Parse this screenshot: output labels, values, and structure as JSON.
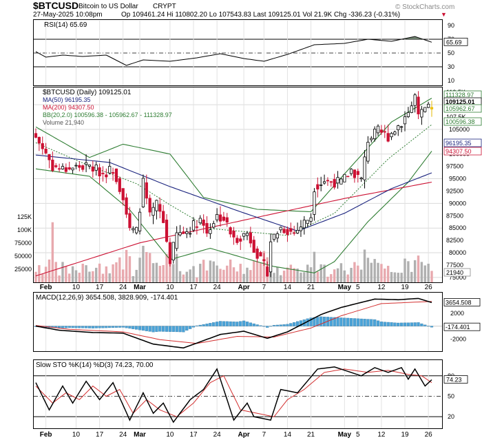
{
  "header": {
    "symbol": "$BTCUSD",
    "name": "Bitcoin to US Dollar",
    "exchange": "CRYPT",
    "watermark": "© StockCharts.com",
    "date": "27-May-2025 10:08pm",
    "ohlc": "Op 109461.24  Hi 110802.20  Lo 107543.83  Last 109125.01  Vol 21.9K  Chg -336.23 (-0.31%)",
    "down_marker": "▼"
  },
  "colors": {
    "up": "#000000",
    "down": "#cc1133",
    "ma50": "#1a237e",
    "ma200": "#cc1133",
    "bb": "#2e7d32",
    "bbmid": "#2e7d32",
    "vol": "#e8a9ae",
    "vol_up": "#b0b0b0",
    "macd": "#000000",
    "signal": "#d32f2f",
    "hist": "#4aa3d8",
    "stok": "#000000",
    "stod": "#d32f2f",
    "rsi": "#000000",
    "rsi_fill": "#556b55"
  },
  "rsi": {
    "label": "RSI(14) 65.69",
    "ticks": [
      "90",
      "70",
      "50",
      "30",
      "10"
    ],
    "value_tag": "65.69"
  },
  "price": {
    "labels": [
      "$BTCUSD (Daily) 109125.01",
      "MA(50) 96195.35",
      "MA(200) 94307.50",
      "BB(20,2.0) 100596.38 - 105962.67 - 111328.97",
      "Volume 21,940"
    ],
    "ticks": [
      "112.5K",
      "107.5K",
      "102.5K",
      "97500",
      "92500",
      "87500",
      "82500",
      "77500",
      "110000",
      "105000",
      "100000",
      "95000",
      "90000",
      "85000",
      "80000",
      "75000"
    ],
    "tags": [
      "111328.97",
      "109125.01",
      "105962.67",
      "100596.38",
      "96195.35",
      "94307.50"
    ],
    "vol_ticks": [
      "125K",
      "100K",
      "75000",
      "50000",
      "25000"
    ],
    "vol_tag": "21940"
  },
  "macd": {
    "label": "MACD(12,26,9) 3654.508, 3828.909, -174.401",
    "ticks": [
      "2000",
      "0",
      "-2000"
    ],
    "tags": [
      "3654.508",
      "-174.401"
    ]
  },
  "sto": {
    "label": "Slow STO %K(14) %D(3) 74.23, 70.00",
    "ticks": [
      "80",
      "50",
      "20"
    ],
    "tag": "74.23"
  },
  "x_axis": [
    "Feb",
    "10",
    "17",
    "24",
    "Mar",
    "10",
    "17",
    "24",
    "Apr",
    "7",
    "14",
    "21",
    "May",
    "5",
    "12",
    "19",
    "26"
  ],
  "chart_data": {
    "type": "candlestick",
    "title": "$BTCUSD (Daily) 109125.01",
    "anchors": [
      [
        "2025-01-29",
        103400
      ],
      [
        "2025-02-01",
        100200
      ],
      [
        "2025-02-03",
        97500
      ],
      [
        "2025-02-06",
        96900
      ],
      [
        "2025-02-10",
        97400
      ],
      [
        "2025-02-14",
        97500
      ],
      [
        "2025-02-18",
        96100
      ],
      [
        "2025-02-21",
        97000
      ],
      [
        "2025-02-24",
        91500
      ],
      [
        "2025-02-26",
        84500
      ],
      [
        "2025-02-28",
        84300
      ],
      [
        "2025-03-02",
        94200
      ],
      [
        "2025-03-04",
        87200
      ],
      [
        "2025-03-06",
        89900
      ],
      [
        "2025-03-08",
        86200
      ],
      [
        "2025-03-10",
        78500
      ],
      [
        "2025-03-12",
        83700
      ],
      [
        "2025-03-15",
        84300
      ],
      [
        "2025-03-19",
        86900
      ],
      [
        "2025-03-21",
        84200
      ],
      [
        "2025-03-24",
        87500
      ],
      [
        "2025-03-26",
        86900
      ],
      [
        "2025-03-29",
        82600
      ],
      [
        "2025-04-02",
        84000
      ],
      [
        "2025-04-06",
        78300
      ],
      [
        "2025-04-08",
        76300
      ],
      [
        "2025-04-09",
        82500
      ],
      [
        "2025-04-12",
        85100
      ],
      [
        "2025-04-16",
        84000
      ],
      [
        "2025-04-21",
        87500
      ],
      [
        "2025-04-22",
        93400
      ],
      [
        "2025-04-25",
        94600
      ],
      [
        "2025-04-30",
        94200
      ],
      [
        "2025-05-03",
        96800
      ],
      [
        "2025-05-06",
        94700
      ],
      [
        "2025-05-08",
        103000
      ],
      [
        "2025-05-11",
        104600
      ],
      [
        "2025-05-14",
        103600
      ],
      [
        "2025-05-18",
        106500
      ],
      [
        "2025-05-21",
        109700
      ],
      [
        "2025-05-22",
        111700
      ],
      [
        "2025-05-23",
        107300
      ],
      [
        "2025-05-25",
        109000
      ],
      [
        "2025-05-27",
        109125
      ]
    ],
    "last_bar": {
      "open": 109461.24,
      "high": 110802.2,
      "low": 107543.83,
      "close": 109125.01,
      "volume": 21900
    },
    "ma50_points": [
      [
        "2025-01-29",
        99800
      ],
      [
        "2025-02-20",
        98300
      ],
      [
        "2025-03-10",
        93400
      ],
      [
        "2025-03-31",
        88300
      ],
      [
        "2025-04-17",
        84400
      ],
      [
        "2025-05-01",
        88000
      ],
      [
        "2025-05-15",
        93000
      ],
      [
        "2025-05-27",
        96195
      ]
    ],
    "ma200_points": [
      [
        "2025-01-29",
        75300
      ],
      [
        "2025-03-01",
        82000
      ],
      [
        "2025-04-01",
        86600
      ],
      [
        "2025-05-01",
        91000
      ],
      [
        "2025-05-27",
        94307
      ]
    ],
    "bb_upper_points": [
      [
        "2025-01-29",
        105500
      ],
      [
        "2025-02-14",
        99300
      ],
      [
        "2025-02-24",
        102000
      ],
      [
        "2025-03-10",
        100000
      ],
      [
        "2025-03-20",
        91200
      ],
      [
        "2025-04-05",
        88800
      ],
      [
        "2025-04-21",
        88300
      ],
      [
        "2025-05-03",
        97500
      ],
      [
        "2025-05-15",
        106500
      ],
      [
        "2025-05-27",
        111329
      ]
    ],
    "bb_mid_points": [
      [
        "2025-01-29",
        102300
      ],
      [
        "2025-02-14",
        97600
      ],
      [
        "2025-02-28",
        94000
      ],
      [
        "2025-03-10",
        89700
      ],
      [
        "2025-03-22",
        84900
      ],
      [
        "2025-04-14",
        83500
      ],
      [
        "2025-04-28",
        88000
      ],
      [
        "2025-05-14",
        99000
      ],
      [
        "2025-05-27",
        105963
      ]
    ],
    "bb_lower_points": [
      [
        "2025-01-29",
        97000
      ],
      [
        "2025-02-14",
        95500
      ],
      [
        "2025-02-26",
        88700
      ],
      [
        "2025-03-10",
        78600
      ],
      [
        "2025-03-22",
        80900
      ],
      [
        "2025-04-10",
        77200
      ],
      [
        "2025-04-22",
        75900
      ],
      [
        "2025-04-28",
        78200
      ],
      [
        "2025-05-08",
        86300
      ],
      [
        "2025-05-20",
        94300
      ],
      [
        "2025-05-27",
        100596
      ]
    ],
    "macd_points": [
      [
        "2025-01-29",
        0
      ],
      [
        "2025-02-05",
        -650
      ],
      [
        "2025-02-15",
        -1000
      ],
      [
        "2025-02-24",
        -1100
      ],
      [
        "2025-03-05",
        -2800
      ],
      [
        "2025-03-14",
        -3400
      ],
      [
        "2025-03-25",
        -1300
      ],
      [
        "2025-04-01",
        -800
      ],
      [
        "2025-04-08",
        -1900
      ],
      [
        "2025-04-14",
        -900
      ],
      [
        "2025-04-24",
        1800
      ],
      [
        "2025-04-30",
        2900
      ],
      [
        "2025-05-10",
        4200
      ],
      [
        "2025-05-17",
        4100
      ],
      [
        "2025-05-23",
        4300
      ],
      [
        "2025-05-27",
        3654.508
      ]
    ],
    "signal_points": [
      [
        "2025-01-29",
        100
      ],
      [
        "2025-02-08",
        -500
      ],
      [
        "2025-02-24",
        -900
      ],
      [
        "2025-03-07",
        -2100
      ],
      [
        "2025-03-18",
        -2700
      ],
      [
        "2025-03-30",
        -1600
      ],
      [
        "2025-04-10",
        -1700
      ],
      [
        "2025-04-21",
        -300
      ],
      [
        "2025-04-30",
        1600
      ],
      [
        "2025-05-12",
        3500
      ],
      [
        "2025-05-27",
        3828.909
      ]
    ],
    "stok_points": [
      [
        "2025-01-29",
        70
      ],
      [
        "2025-02-02",
        30
      ],
      [
        "2025-02-06",
        65
      ],
      [
        "2025-02-09",
        40
      ],
      [
        "2025-02-13",
        72
      ],
      [
        "2025-02-17",
        45
      ],
      [
        "2025-02-21",
        70
      ],
      [
        "2025-02-26",
        15
      ],
      [
        "2025-03-02",
        55
      ],
      [
        "2025-03-05",
        25
      ],
      [
        "2025-03-08",
        40
      ],
      [
        "2025-03-11",
        12
      ],
      [
        "2025-03-16",
        45
      ],
      [
        "2025-03-20",
        60
      ],
      [
        "2025-03-24",
        90
      ],
      [
        "2025-03-29",
        15
      ],
      [
        "2025-04-02",
        40
      ],
      [
        "2025-04-04",
        20
      ],
      [
        "2025-04-09",
        15
      ],
      [
        "2025-04-12",
        60
      ],
      [
        "2025-04-17",
        55
      ],
      [
        "2025-04-23",
        90
      ],
      [
        "2025-04-28",
        93
      ],
      [
        "2025-05-06",
        80
      ],
      [
        "2025-05-10",
        92
      ],
      [
        "2025-05-14",
        85
      ],
      [
        "2025-05-18",
        92
      ],
      [
        "2025-05-20",
        75
      ],
      [
        "2025-05-22",
        90
      ],
      [
        "2025-05-25",
        65
      ],
      [
        "2025-05-27",
        74.23
      ]
    ],
    "stod_points": [
      [
        "2025-01-29",
        65
      ],
      [
        "2025-02-03",
        40
      ],
      [
        "2025-02-07",
        55
      ],
      [
        "2025-02-11",
        45
      ],
      [
        "2025-02-15",
        65
      ],
      [
        "2025-02-19",
        50
      ],
      [
        "2025-02-23",
        60
      ],
      [
        "2025-02-27",
        25
      ],
      [
        "2025-03-03",
        45
      ],
      [
        "2025-03-07",
        30
      ],
      [
        "2025-03-12",
        20
      ],
      [
        "2025-03-17",
        40
      ],
      [
        "2025-03-22",
        70
      ],
      [
        "2025-03-26",
        80
      ],
      [
        "2025-03-31",
        30
      ],
      [
        "2025-04-05",
        25
      ],
      [
        "2025-04-10",
        20
      ],
      [
        "2025-04-14",
        45
      ],
      [
        "2025-04-19",
        60
      ],
      [
        "2025-04-25",
        85
      ],
      [
        "2025-05-01",
        90
      ],
      [
        "2025-05-08",
        85
      ],
      [
        "2025-05-14",
        88
      ],
      [
        "2025-05-20",
        82
      ],
      [
        "2025-05-24",
        80
      ],
      [
        "2025-05-27",
        70
      ]
    ],
    "rsi_points": [
      [
        "2025-01-29",
        52
      ],
      [
        "2025-02-01",
        44
      ],
      [
        "2025-02-06",
        47
      ],
      [
        "2025-02-12",
        45
      ],
      [
        "2025-02-19",
        47
      ],
      [
        "2025-02-25",
        32
      ],
      [
        "2025-03-02",
        40
      ],
      [
        "2025-03-10",
        38
      ],
      [
        "2025-03-18",
        43
      ],
      [
        "2025-03-25",
        49
      ],
      [
        "2025-04-01",
        42
      ],
      [
        "2025-04-07",
        38
      ],
      [
        "2025-04-14",
        48
      ],
      [
        "2025-04-22",
        62
      ],
      [
        "2025-05-01",
        64
      ],
      [
        "2025-05-08",
        70
      ],
      [
        "2025-05-15",
        67
      ],
      [
        "2025-05-22",
        74
      ],
      [
        "2025-05-27",
        65.69
      ]
    ]
  }
}
